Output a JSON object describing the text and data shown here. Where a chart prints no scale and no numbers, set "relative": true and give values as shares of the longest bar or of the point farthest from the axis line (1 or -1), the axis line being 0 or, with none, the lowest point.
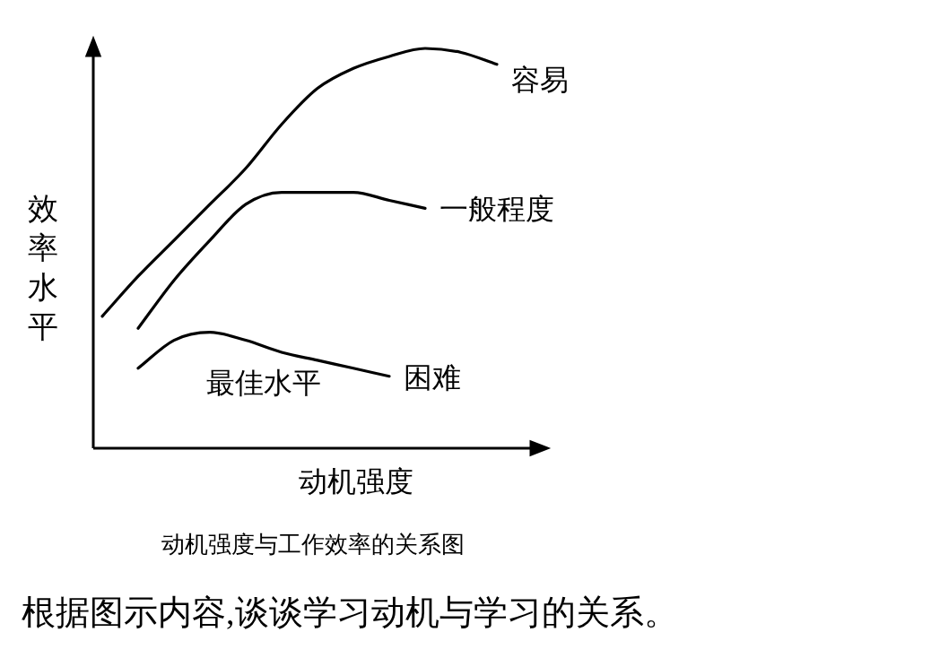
{
  "chart_data": {
    "type": "line",
    "relative": true,
    "xlabel": "动机强度",
    "ylabel": "效率水平",
    "categories": [
      null,
      null,
      null,
      null,
      null,
      null,
      null,
      null,
      null,
      null,
      null,
      null
    ],
    "series": [
      {
        "name": "容易",
        "color": "#000000",
        "values": [
          0.33,
          0.43,
          0.52,
          0.61,
          0.7,
          0.81,
          0.9,
          0.95,
          0.98,
          1.0,
          0.99,
          0.96
        ]
      },
      {
        "name": "一般程度",
        "color": "#000000",
        "values": [
          null,
          0.3,
          0.42,
          0.52,
          0.61,
          0.64,
          0.64,
          0.64,
          0.62,
          0.6,
          null,
          null
        ]
      },
      {
        "name": "困难",
        "color": "#000000",
        "values": [
          null,
          0.2,
          0.27,
          0.29,
          0.27,
          0.24,
          0.22,
          0.2,
          0.18,
          null,
          null,
          null
        ]
      }
    ],
    "annotations": [
      "最佳水平",
      "动机强度与工作效率的关系图",
      "根据图示内容,谈谈学习动机与学习的关系。"
    ]
  }
}
